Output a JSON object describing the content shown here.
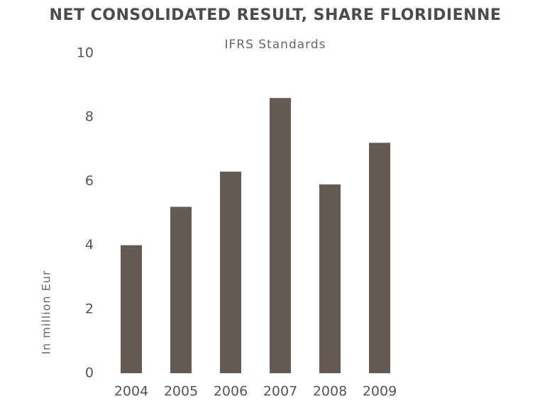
{
  "chart_data": {
    "type": "bar",
    "title": "NET CONSOLIDATED RESULT, SHARE FLORIDIENNE",
    "subtitle": "IFRS Standards",
    "y_label": "In million Eur",
    "categories": [
      "2004",
      "2005",
      "2006",
      "2007",
      "2008",
      "2009"
    ],
    "values": [
      4.0,
      5.2,
      6.3,
      8.6,
      5.9,
      7.2
    ],
    "color": "#655b55",
    "ylim": [
      0,
      10
    ],
    "yticks": [
      0,
      2,
      4,
      6,
      8,
      10
    ],
    "grid": false
  }
}
